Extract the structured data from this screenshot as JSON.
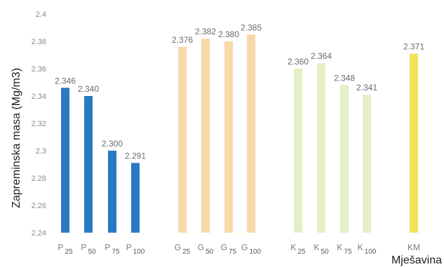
{
  "chart_data": {
    "type": "bar",
    "title": "",
    "xlabel": "Mješavina",
    "ylabel": "Zapreminska masa (Mg/m3)",
    "ylim": [
      2.24,
      2.4
    ],
    "yticks": [
      "2.24",
      "2.26",
      "2.28",
      "2.3",
      "2.32",
      "2.34",
      "2.36",
      "2.38",
      "2.4"
    ],
    "grid": false,
    "legend": "none",
    "categories": [
      {
        "main": "P",
        "sub": "25"
      },
      {
        "main": "P",
        "sub": "50"
      },
      {
        "main": "P",
        "sub": "75"
      },
      {
        "main": "P",
        "sub": "100"
      },
      {
        "main": "G",
        "sub": "25"
      },
      {
        "main": "G",
        "sub": "50"
      },
      {
        "main": "G",
        "sub": "75"
      },
      {
        "main": "G",
        "sub": "100"
      },
      {
        "main": "K",
        "sub": "25"
      },
      {
        "main": "K",
        "sub": "50"
      },
      {
        "main": "K",
        "sub": "75"
      },
      {
        "main": "K",
        "sub": "100"
      },
      {
        "main": "KM",
        "sub": ""
      }
    ],
    "values": [
      2.346,
      2.34,
      2.3,
      2.291,
      2.376,
      2.382,
      2.38,
      2.385,
      2.36,
      2.364,
      2.348,
      2.341,
      2.371
    ],
    "data_labels": [
      "2.346",
      "2.340",
      "2.300",
      "2.291",
      "2.376",
      "2.382",
      "2.380",
      "2.385",
      "2.360",
      "2.364",
      "2.348",
      "2.341",
      "2.371"
    ],
    "colors": [
      "#2a7ac2",
      "#2a7ac2",
      "#2a7ac2",
      "#2a7ac2",
      "#f8d9a8",
      "#f8d9a8",
      "#f8d9a8",
      "#f8d9a8",
      "#e3efc6",
      "#e3efc6",
      "#e3efc6",
      "#e3efc6",
      "#f4e35a"
    ]
  }
}
